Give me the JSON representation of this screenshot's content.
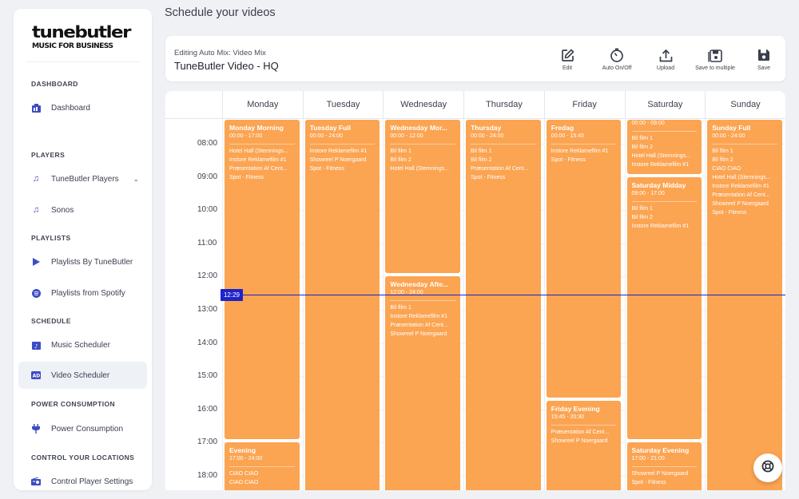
{
  "page_title": "Schedule your videos",
  "logo": {
    "main": "tunebutler",
    "sub": "MUSIC FOR BUSINESS"
  },
  "sidebar": {
    "sections": [
      "DASHBOARD",
      "PLAYERS",
      "PLAYLISTS",
      "SCHEDULE",
      "POWER CONSUMPTION",
      "CONTROL YOUR LOCATIONS"
    ],
    "items": [
      {
        "label": "Dashboard",
        "icon": "dashboard-icon"
      },
      {
        "label": "TuneButler Players",
        "icon": "music-note-icon"
      },
      {
        "label": "Sonos",
        "icon": "music-note-icon"
      },
      {
        "label": "Playlists By TuneButler",
        "icon": "play-icon"
      },
      {
        "label": "Playlists from Spotify",
        "icon": "spotify-icon"
      },
      {
        "label": "Music Scheduler",
        "icon": "calendar-music-icon"
      },
      {
        "label": "Video Scheduler",
        "icon": "ad-icon"
      },
      {
        "label": "Power Consumption",
        "icon": "plug-icon"
      },
      {
        "label": "Control Player Settings",
        "icon": "radio-icon"
      }
    ]
  },
  "header": {
    "subtitle": "Editing Auto Mix: Video Mix",
    "title": "TuneButler Video - HQ",
    "tools": [
      "Edit",
      "Auto On/Off",
      "Upload",
      "Save to multiple",
      "Save"
    ]
  },
  "calendar": {
    "days": [
      "Monday",
      "Tuesday",
      "Wednesday",
      "Thursday",
      "Friday",
      "Saturday",
      "Sunday"
    ],
    "hours": [
      "08:00",
      "09:00",
      "10:00",
      "11:00",
      "12:00",
      "13:00",
      "14:00",
      "15:00",
      "16:00",
      "17:00",
      "18:00"
    ],
    "now": "12:29",
    "accent": "#fba452",
    "now_color": "#1d23c8",
    "events": [
      {
        "day": 0,
        "start": 0,
        "end": 17,
        "name": "Monday Morning",
        "time": "00:00 - 17:00",
        "items": [
          "Hotel Hall (Stemnings...",
          "Instore Reklamefilm #1",
          "Præsentation Af Cent...",
          "Spot - Fitness"
        ]
      },
      {
        "day": 0,
        "start": 17,
        "end": 24,
        "name": "Evening",
        "time": "17:00 - 24:00",
        "items": [
          "CIAO CIAO",
          "CIAO CIAO"
        ]
      },
      {
        "day": 1,
        "start": 0,
        "end": 24,
        "name": "Tuesday Full",
        "time": "00:00 - 24:00",
        "items": [
          "Instore Reklamefilm #1",
          "Showreel P Noergaard",
          "Spot - Fitness"
        ]
      },
      {
        "day": 2,
        "start": 0,
        "end": 12,
        "name": "Wednesday Mor...",
        "time": "00:00 - 12:00",
        "items": [
          "Bil film 1",
          "Bil film 2",
          "Hotel Hall (Stemnings..."
        ]
      },
      {
        "day": 2,
        "start": 12,
        "end": 24,
        "name": "Wednesday Afte...",
        "time": "12:00 - 24:00",
        "items": [
          "Bil film 1",
          "Instore Reklamefilm #1",
          "Præsentation Af Cent...",
          "Showreel P Noergaard"
        ]
      },
      {
        "day": 3,
        "start": 0,
        "end": 24,
        "name": "Thursday",
        "time": "00:00 - 24:00",
        "items": [
          "Bil film 1",
          "Bil film 2",
          "Præsentation Af Cent...",
          "Spot - Fitness"
        ]
      },
      {
        "day": 4,
        "start": 0,
        "end": 15.75,
        "name": "Fredag",
        "time": "00:00 - 15:45",
        "items": [
          "Instore Reklamefilm #1",
          "Spot - Fitness"
        ]
      },
      {
        "day": 4,
        "start": 15.75,
        "end": 20.5,
        "name": "Friday Evening",
        "time": "15:45 - 20:30",
        "items": [
          "Præsentation Af Cent...",
          "Showreel P Noergaard"
        ]
      },
      {
        "day": 5,
        "start": 0,
        "end": 9,
        "name": "",
        "time": "00:00 - 09:00",
        "items": [
          "Bil film 1",
          "Bil film 2",
          "Hotel Hall (Stemnings...",
          "Instore Reklamefilm #1"
        ]
      },
      {
        "day": 5,
        "start": 9,
        "end": 17,
        "name": "Saturday Midday",
        "time": "09:00 - 17:00",
        "items": [
          "Bil film 1",
          "Bil film 2",
          "Instore Reklamefilm #1"
        ]
      },
      {
        "day": 5,
        "start": 17,
        "end": 21,
        "name": "Saturday Evening",
        "time": "17:00 - 21:00",
        "items": [
          "Showreel P Noergaard",
          "Spot - Fitness"
        ]
      },
      {
        "day": 6,
        "start": 0,
        "end": 24,
        "name": "Sunday Full",
        "time": "00:00 - 24:00",
        "items": [
          "Bil film 1",
          "Bil film 2",
          "CIAO CIAO",
          "Hotel Hall (Stemnings...",
          "Instore Reklamefilm #1",
          "Præsentation Af Cent...",
          "Showreel P Noergaard",
          "Spot - Fitness"
        ]
      }
    ]
  }
}
